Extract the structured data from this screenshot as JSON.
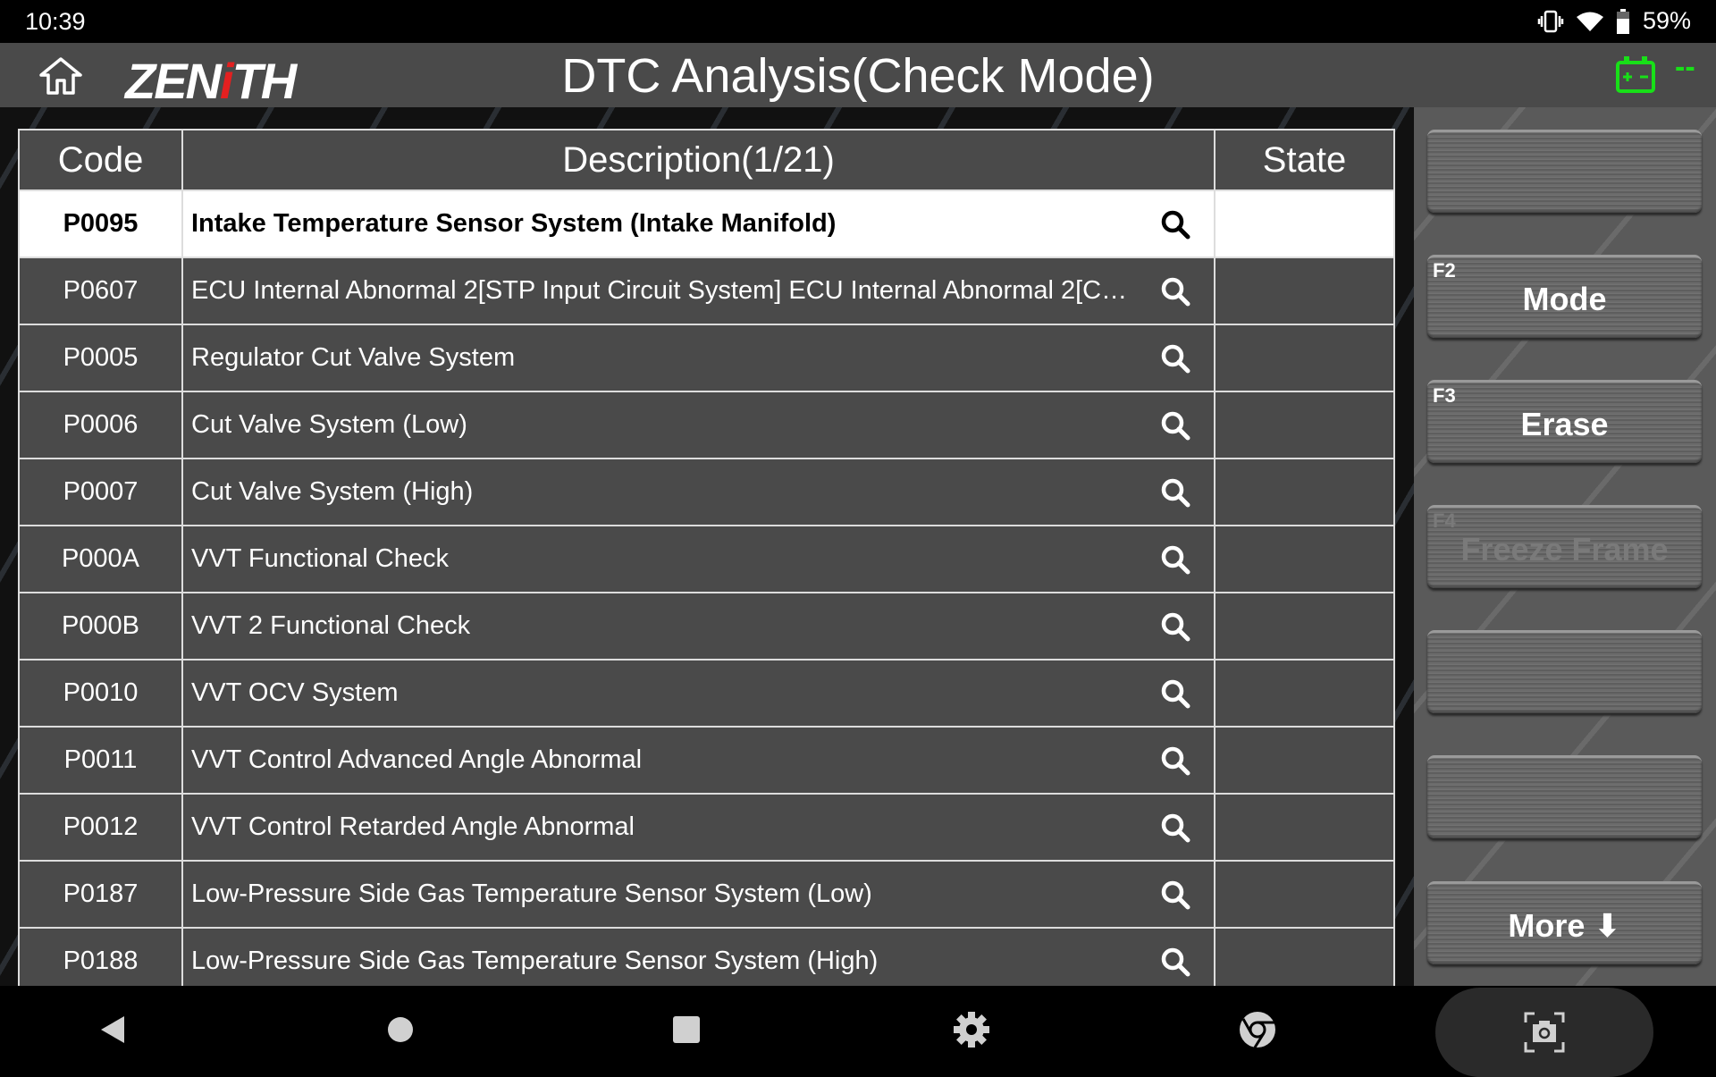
{
  "status_bar": {
    "time": "10:39",
    "battery": "59%",
    "icons": [
      "vibrate-icon",
      "wifi-icon",
      "battery-icon"
    ]
  },
  "header": {
    "logo": "ZENITH",
    "title": "DTC Analysis(Check Mode)",
    "voltage": "--",
    "battery_color": "#18e018",
    "logo_accent": "#e32020"
  },
  "table": {
    "columns": [
      "Code",
      "Description(1/21)",
      "State"
    ],
    "selected_index": 0,
    "rows": [
      {
        "code": "P0095",
        "description": "Intake Temperature Sensor System (Intake Manifold)",
        "state": ""
      },
      {
        "code": "P0607",
        "description": "ECU Internal Abnormal 2[STP Input Circuit System] ECU Internal Abnormal 2[C…",
        "state": ""
      },
      {
        "code": "P0005",
        "description": "Regulator Cut Valve System",
        "state": ""
      },
      {
        "code": "P0006",
        "description": "Cut Valve System (Low)",
        "state": ""
      },
      {
        "code": "P0007",
        "description": "Cut Valve System (High)",
        "state": ""
      },
      {
        "code": "P000A",
        "description": "VVT Functional Check",
        "state": ""
      },
      {
        "code": "P000B",
        "description": "VVT 2 Functional Check",
        "state": ""
      },
      {
        "code": "P0010",
        "description": "VVT OCV System",
        "state": ""
      },
      {
        "code": "P0011",
        "description": "VVT Control Advanced Angle Abnormal",
        "state": ""
      },
      {
        "code": "P0012",
        "description": "VVT Control Retarded Angle Abnormal",
        "state": ""
      },
      {
        "code": "P0187",
        "description": "Low-Pressure Side Gas Temperature Sensor System (Low)",
        "state": ""
      },
      {
        "code": "P0188",
        "description": "Low-Pressure Side Gas Temperature Sensor System (High)",
        "state": ""
      }
    ]
  },
  "function_buttons": [
    {
      "key": "",
      "label": "",
      "enabled": true
    },
    {
      "key": "F2",
      "label": "Mode",
      "enabled": true
    },
    {
      "key": "F3",
      "label": "Erase",
      "enabled": true
    },
    {
      "key": "F4",
      "label": "Freeze Frame",
      "enabled": false
    },
    {
      "key": "",
      "label": "",
      "enabled": true
    },
    {
      "key": "",
      "label": "",
      "enabled": true
    },
    {
      "key": "",
      "label": "More ⬇",
      "enabled": true
    }
  ],
  "nav_bar": {
    "icons": [
      "back-icon",
      "home-icon",
      "recents-icon",
      "settings-icon",
      "chrome-icon",
      "screenshot-icon"
    ]
  }
}
